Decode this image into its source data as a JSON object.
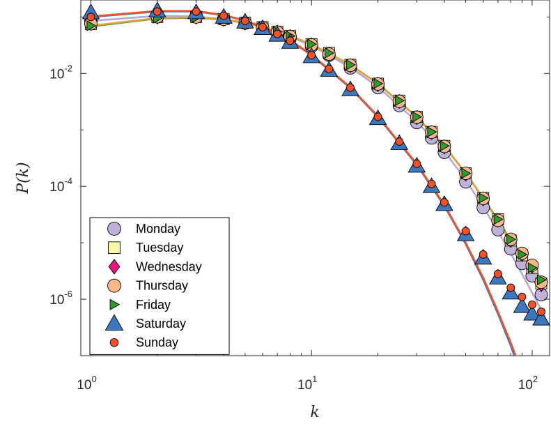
{
  "chart_data": {
    "type": "scatter",
    "xscale": "log",
    "yscale": "log",
    "xlim": [
      0.9,
      120
    ],
    "ylim": [
      1e-07,
      0.2
    ],
    "xlabel": "k",
    "ylabel": "P(k)",
    "xticks": [
      1,
      10,
      100
    ],
    "xtick_labels": [
      {
        "base": "10",
        "exp": "0"
      },
      {
        "base": "10",
        "exp": "1"
      },
      {
        "base": "10",
        "exp": "2"
      }
    ],
    "yticks": [
      1e-06,
      0.0001,
      0.01
    ],
    "ytick_labels": [
      {
        "base": "10",
        "exp": "-6"
      },
      {
        "base": "10",
        "exp": "-4"
      },
      {
        "base": "10",
        "exp": "-2"
      }
    ],
    "grid": false,
    "legend_position": "bottom-left",
    "series": [
      {
        "name": "Monday",
        "marker": "circle",
        "color": "#bfb1d9",
        "group": "weekday",
        "x": [
          1,
          2,
          3,
          4,
          5,
          6,
          7,
          8,
          10,
          12,
          15,
          20,
          25,
          30,
          35,
          40,
          50,
          60,
          70,
          80,
          90,
          100,
          110
        ],
        "y": [
          0.085,
          0.11,
          0.105,
          0.093,
          0.078,
          0.064,
          0.052,
          0.043,
          0.03,
          0.021,
          0.0125,
          0.0056,
          0.0027,
          0.00135,
          0.00072,
          0.0004,
          0.00012,
          4.2e-05,
          1.7e-05,
          7.8e-06,
          4.3e-06,
          2.6e-06,
          1.2e-06
        ]
      },
      {
        "name": "Tuesday",
        "marker": "square",
        "color": "#f9f7a9",
        "group": "weekday",
        "x": [
          1,
          2,
          3,
          4,
          5,
          6,
          7,
          8,
          10,
          12,
          15,
          20,
          25,
          30,
          35,
          40,
          50,
          60,
          70,
          80,
          90,
          100,
          110
        ],
        "y": [
          0.075,
          0.1,
          0.1,
          0.092,
          0.079,
          0.066,
          0.055,
          0.046,
          0.033,
          0.023,
          0.0142,
          0.0066,
          0.0033,
          0.0017,
          0.00092,
          0.00052,
          0.00017,
          6.2e-05,
          2.6e-05,
          1.1e-05,
          6e-06,
          3.6e-06,
          1.9e-06
        ]
      },
      {
        "name": "Wednesday",
        "marker": "diamond",
        "color": "#e7157f",
        "group": "weekday",
        "x": [
          1,
          2,
          3,
          4,
          5,
          6,
          7,
          8,
          10,
          12,
          15,
          20,
          25,
          30,
          35,
          40,
          50,
          60,
          70,
          80,
          90,
          100,
          110
        ],
        "y": [
          0.077,
          0.1,
          0.1,
          0.091,
          0.078,
          0.065,
          0.054,
          0.045,
          0.032,
          0.022,
          0.0138,
          0.0064,
          0.0032,
          0.00165,
          0.0009,
          0.0005,
          0.000165,
          6e-05,
          2.5e-05,
          1.1e-05,
          6.2e-06,
          3.8e-06,
          1.8e-06
        ]
      },
      {
        "name": "Thursday",
        "marker": "circle",
        "color": "#fdb78a",
        "group": "weekday",
        "x": [
          1,
          2,
          3,
          4,
          5,
          6,
          7,
          8,
          10,
          12,
          15,
          20,
          25,
          30,
          35,
          40,
          50,
          60,
          70,
          80,
          90,
          100,
          110
        ],
        "y": [
          0.076,
          0.101,
          0.1,
          0.091,
          0.078,
          0.065,
          0.054,
          0.045,
          0.032,
          0.022,
          0.0139,
          0.0065,
          0.0032,
          0.00168,
          0.00091,
          0.00051,
          0.00017,
          6.1e-05,
          2.5e-05,
          1.15e-05,
          6.5e-06,
          4e-06,
          2e-06
        ]
      },
      {
        "name": "Friday",
        "marker": "triangle-right",
        "color": "#2d9b2d",
        "group": "weekday",
        "x": [
          1,
          2,
          3,
          4,
          5,
          6,
          7,
          8,
          10,
          12,
          15,
          20,
          25,
          30,
          35,
          40,
          50,
          60,
          70,
          80,
          90,
          100,
          110
        ],
        "y": [
          0.07,
          0.095,
          0.098,
          0.091,
          0.079,
          0.066,
          0.055,
          0.046,
          0.033,
          0.023,
          0.0142,
          0.0066,
          0.0033,
          0.0017,
          0.00092,
          0.00052,
          0.00017,
          6.2e-05,
          2.6e-05,
          1.15e-05,
          6.2e-06,
          3.6e-06,
          2.2e-06
        ]
      },
      {
        "name": "Saturday",
        "marker": "triangle-up",
        "color": "#3d78bf",
        "group": "weekend",
        "x": [
          1,
          2,
          3,
          4,
          5,
          6,
          7,
          8,
          10,
          12,
          15,
          20,
          25,
          30,
          35,
          40,
          50,
          60,
          70,
          80,
          90,
          100,
          110
        ],
        "y": [
          0.12,
          0.13,
          0.12,
          0.1,
          0.082,
          0.063,
          0.048,
          0.036,
          0.02,
          0.0115,
          0.0052,
          0.0016,
          0.00058,
          0.00023,
          0.0001,
          4.8e-05,
          1.4e-05,
          5.4e-06,
          2.4e-06,
          1.3e-06,
          7.5e-07,
          5.5e-07,
          4.5e-07
        ]
      },
      {
        "name": "Sunday",
        "marker": "circle-small",
        "color": "#f4502a",
        "group": "weekend",
        "x": [
          1,
          2,
          3,
          4,
          5,
          6,
          7,
          8,
          10,
          12,
          15,
          20,
          25,
          30,
          35,
          40,
          50,
          60,
          70,
          80,
          90,
          100,
          110
        ],
        "y": [
          0.1,
          0.125,
          0.125,
          0.105,
          0.085,
          0.066,
          0.05,
          0.038,
          0.021,
          0.012,
          0.0056,
          0.0017,
          0.00062,
          0.00025,
          0.00011,
          5.2e-05,
          1.6e-05,
          6.2e-06,
          2.8e-06,
          1.6e-06,
          1.1e-06,
          8e-07,
          6e-07
        ]
      }
    ],
    "fit_lines": [
      {
        "color": "#b6a8d6",
        "x": [
          1,
          2,
          3,
          4,
          5,
          6,
          8,
          10,
          15,
          20,
          30,
          40,
          50,
          60,
          70,
          80,
          90,
          100,
          110
        ],
        "y": [
          0.085,
          0.105,
          0.102,
          0.092,
          0.079,
          0.066,
          0.045,
          0.031,
          0.0128,
          0.0058,
          0.0014,
          0.00042,
          0.00013,
          4.3e-05,
          1.6e-05,
          6.5e-06,
          2.8e-06,
          1.3e-06,
          6.5e-07
        ]
      },
      {
        "color": "#2d9b2d",
        "x": [
          1,
          2,
          3,
          4,
          5,
          6,
          8,
          10,
          15,
          20,
          30,
          40,
          50,
          60,
          70,
          80,
          90,
          100,
          110
        ],
        "y": [
          0.068,
          0.094,
          0.097,
          0.09,
          0.078,
          0.066,
          0.046,
          0.033,
          0.0142,
          0.0066,
          0.0017,
          0.00052,
          0.00017,
          6.2e-05,
          2.5e-05,
          1.1e-05,
          5.2e-06,
          2.6e-06,
          1.3e-06
        ]
      },
      {
        "color": "#e6a33c",
        "x": [
          1,
          2,
          3,
          4,
          5,
          6,
          8,
          10,
          15,
          20,
          30,
          40,
          50,
          60,
          70,
          80,
          90,
          100,
          110
        ],
        "y": [
          0.07,
          0.096,
          0.099,
          0.091,
          0.079,
          0.066,
          0.046,
          0.033,
          0.0141,
          0.0065,
          0.00168,
          0.00051,
          0.000168,
          6.1e-05,
          2.4e-05,
          1.05e-05,
          5e-06,
          2.5e-06,
          1.2e-06
        ]
      },
      {
        "color": "#3d78bf",
        "x": [
          1,
          2,
          3,
          4,
          5,
          6,
          8,
          10,
          15,
          20,
          30,
          40,
          50,
          60,
          70,
          80,
          90,
          100
        ],
        "y": [
          0.1,
          0.125,
          0.125,
          0.107,
          0.086,
          0.066,
          0.038,
          0.021,
          0.0055,
          0.0017,
          0.00024,
          4.5e-05,
          9.5e-06,
          2.2e-06,
          5.5e-07,
          1.5e-07,
          4e-08,
          1.2e-08
        ]
      },
      {
        "color": "#f4502a",
        "x": [
          1,
          2,
          3,
          4,
          5,
          6,
          8,
          10,
          15,
          20,
          30,
          40,
          50,
          60,
          70,
          80,
          90,
          100
        ],
        "y": [
          0.102,
          0.128,
          0.128,
          0.108,
          0.087,
          0.067,
          0.039,
          0.0215,
          0.0057,
          0.00175,
          0.00025,
          4.7e-05,
          1e-05,
          2.4e-06,
          6e-07,
          1.7e-07,
          5e-08,
          1.5e-08
        ]
      }
    ]
  }
}
